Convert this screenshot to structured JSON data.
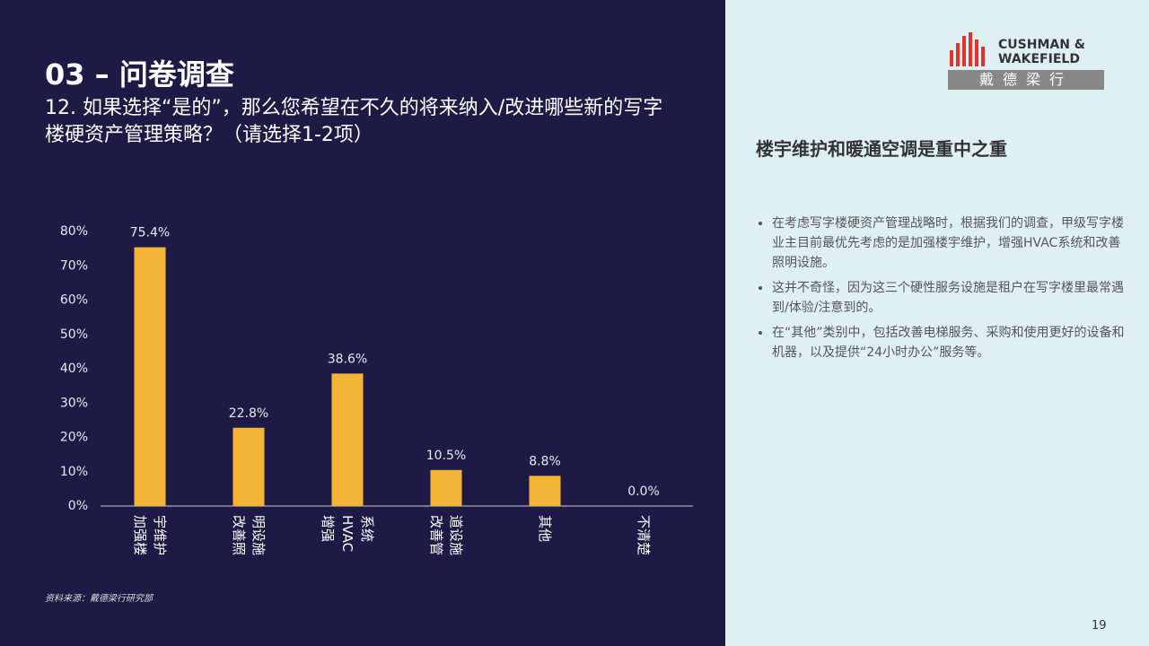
{
  "header": {
    "section": "03 – 问卷调查",
    "question": "12. 如果选择“是的”，那么您希望在不久的将来纳入/改进哪些新的写字楼硬资产管理策略？（请选择1-2项）"
  },
  "chart_data": {
    "type": "bar",
    "categories": [
      "加强楼宇维护",
      "改善照明设施",
      "增强HVAC系统",
      "改善管道设施",
      "其他",
      "不清楚"
    ],
    "values": [
      75.4,
      22.8,
      38.6,
      10.5,
      8.8,
      0.0
    ],
    "value_labels": [
      "75.4%",
      "22.8%",
      "38.6%",
      "10.5%",
      "8.8%",
      "0.0%"
    ],
    "color": "#f2b535",
    "ylim": [
      0,
      80
    ],
    "yticks": [
      {
        "value": 0,
        "label": "0%"
      },
      {
        "value": 10,
        "label": "10%"
      },
      {
        "value": 20,
        "label": "20%"
      },
      {
        "value": 30,
        "label": "30%"
      },
      {
        "value": 40,
        "label": "40%"
      },
      {
        "value": 50,
        "label": "50%"
      },
      {
        "value": 60,
        "label": "60%"
      },
      {
        "value": 70,
        "label": "70%"
      },
      {
        "value": 80,
        "label": "80%"
      }
    ],
    "grid": false
  },
  "source": "资料来源：戴德梁行研究部",
  "logo": {
    "line1": "CUSHMAN &",
    "line2": "WAKEFIELD",
    "cn": "戴德梁行"
  },
  "sidebar": {
    "heading": "楼宇维护和暖通空调是重中之重",
    "bullets": [
      "在考虑写字楼硬资产管理战略时，根据我们的调查，甲级写字楼业主目前最优先考虑的是加强楼宇维护，增强HVAC系统和改善照明设施。",
      "这并不奇怪，因为这三个硬性服务设施是租户在写字楼里最常遇到/体验/注意到的。",
      "在“其他”类别中，包括改善电梯服务、采购和使用更好的设备和机器，以及提供“24小时办公”服务等。"
    ]
  },
  "page_number": "19"
}
